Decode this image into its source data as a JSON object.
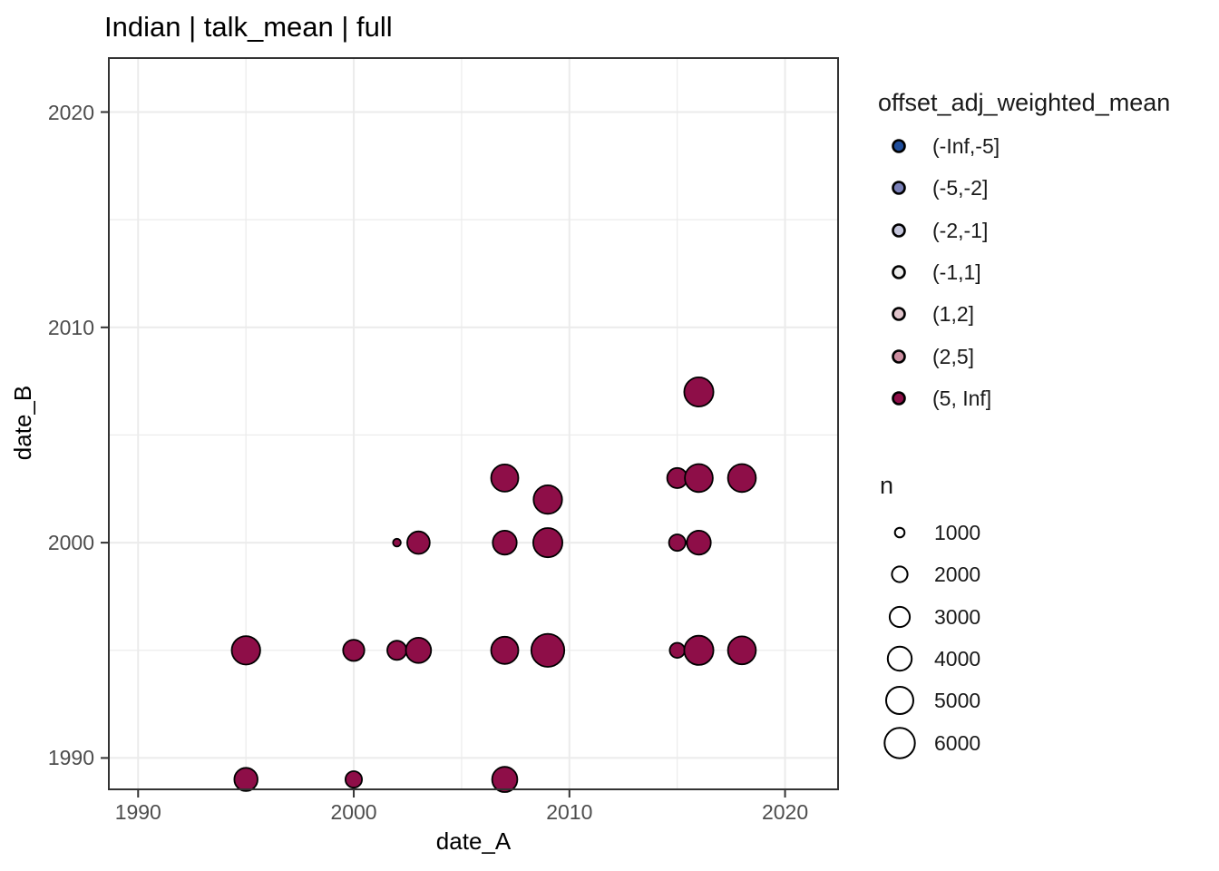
{
  "title": "Indian | talk_mean | full",
  "chart_data": {
    "type": "scatter",
    "title": "Indian | talk_mean | full",
    "xlabel": "date_A",
    "ylabel": "date_B",
    "x_ticks": [
      "1990",
      "2000",
      "2010",
      "2020"
    ],
    "y_ticks": [
      "1990",
      "2000",
      "2010",
      "2020"
    ],
    "x_tick_values": [
      1990,
      2000,
      2010,
      2020
    ],
    "y_tick_values": [
      1990,
      2000,
      2010,
      2020
    ],
    "x_minor_values": [
      1995,
      2005,
      2015
    ],
    "y_minor_values": [
      1995,
      2005,
      2015
    ],
    "xlim": [
      1988.6,
      2022.5
    ],
    "ylim": [
      1988.5,
      2022.55
    ],
    "grid": true,
    "legend_position": "right",
    "point_outline_color": "#000000",
    "grid_color": "#ebebeb",
    "panel_border_color": "#333333",
    "color_legend": {
      "title": "offset_adj_weighted_mean",
      "entries": [
        {
          "label": "(-Inf,-5]",
          "color": "#1f4d9b"
        },
        {
          "label": "(-5,-2]",
          "color": "#7a80b8"
        },
        {
          "label": "(-2,-1]",
          "color": "#c4c5db"
        },
        {
          "label": "(-1,1]",
          "color": "#ececeb"
        },
        {
          "label": "(1,2]",
          "color": "#e0c4cb"
        },
        {
          "label": "(2,5]",
          "color": "#cb8c9f"
        },
        {
          "label": "(5, Inf]",
          "color": "#8e0e48"
        }
      ]
    },
    "size_legend": {
      "title": "n",
      "entries": [
        "1000",
        "2000",
        "3000",
        "4000",
        "5000",
        "6000"
      ],
      "values": [
        1000,
        2000,
        3000,
        4000,
        5000,
        6000
      ]
    },
    "points": [
      {
        "x": 1995,
        "y": 1989,
        "n": 3800,
        "bin": "(5, Inf]"
      },
      {
        "x": 2000,
        "y": 1989,
        "n": 2200,
        "bin": "(5, Inf]"
      },
      {
        "x": 2007,
        "y": 1989,
        "n": 4400,
        "bin": "(5, Inf]"
      },
      {
        "x": 1995,
        "y": 1995,
        "n": 5400,
        "bin": "(5, Inf]"
      },
      {
        "x": 2000,
        "y": 1995,
        "n": 3300,
        "bin": "(5, Inf]"
      },
      {
        "x": 2002,
        "y": 1995,
        "n": 2800,
        "bin": "(5, Inf]"
      },
      {
        "x": 2003,
        "y": 1995,
        "n": 4400,
        "bin": "(5, Inf]"
      },
      {
        "x": 2007,
        "y": 1995,
        "n": 5000,
        "bin": "(5, Inf]"
      },
      {
        "x": 2009,
        "y": 1995,
        "n": 7000,
        "bin": "(5, Inf]"
      },
      {
        "x": 2015,
        "y": 1995,
        "n": 1900,
        "bin": "(5, Inf]"
      },
      {
        "x": 2016,
        "y": 1995,
        "n": 5600,
        "bin": "(5, Inf]"
      },
      {
        "x": 2018,
        "y": 1995,
        "n": 5200,
        "bin": "(5, Inf]"
      },
      {
        "x": 2002,
        "y": 2000,
        "n": 760,
        "bin": "(5, Inf]"
      },
      {
        "x": 2003,
        "y": 2000,
        "n": 3600,
        "bin": "(5, Inf]"
      },
      {
        "x": 2007,
        "y": 2000,
        "n": 4000,
        "bin": "(5, Inf]"
      },
      {
        "x": 2009,
        "y": 2000,
        "n": 5600,
        "bin": "(5, Inf]"
      },
      {
        "x": 2015,
        "y": 2000,
        "n": 2200,
        "bin": "(5, Inf]"
      },
      {
        "x": 2016,
        "y": 2000,
        "n": 4000,
        "bin": "(5, Inf]"
      },
      {
        "x": 2009,
        "y": 2002,
        "n": 5400,
        "bin": "(5, Inf]"
      },
      {
        "x": 2007,
        "y": 2003,
        "n": 5000,
        "bin": "(5, Inf]"
      },
      {
        "x": 2015,
        "y": 2003,
        "n": 3000,
        "bin": "(5, Inf]"
      },
      {
        "x": 2016,
        "y": 2003,
        "n": 5200,
        "bin": "(5, Inf]"
      },
      {
        "x": 2018,
        "y": 2003,
        "n": 5200,
        "bin": "(5, Inf]"
      },
      {
        "x": 2016,
        "y": 2007,
        "n": 5600,
        "bin": "(5, Inf]"
      }
    ]
  }
}
